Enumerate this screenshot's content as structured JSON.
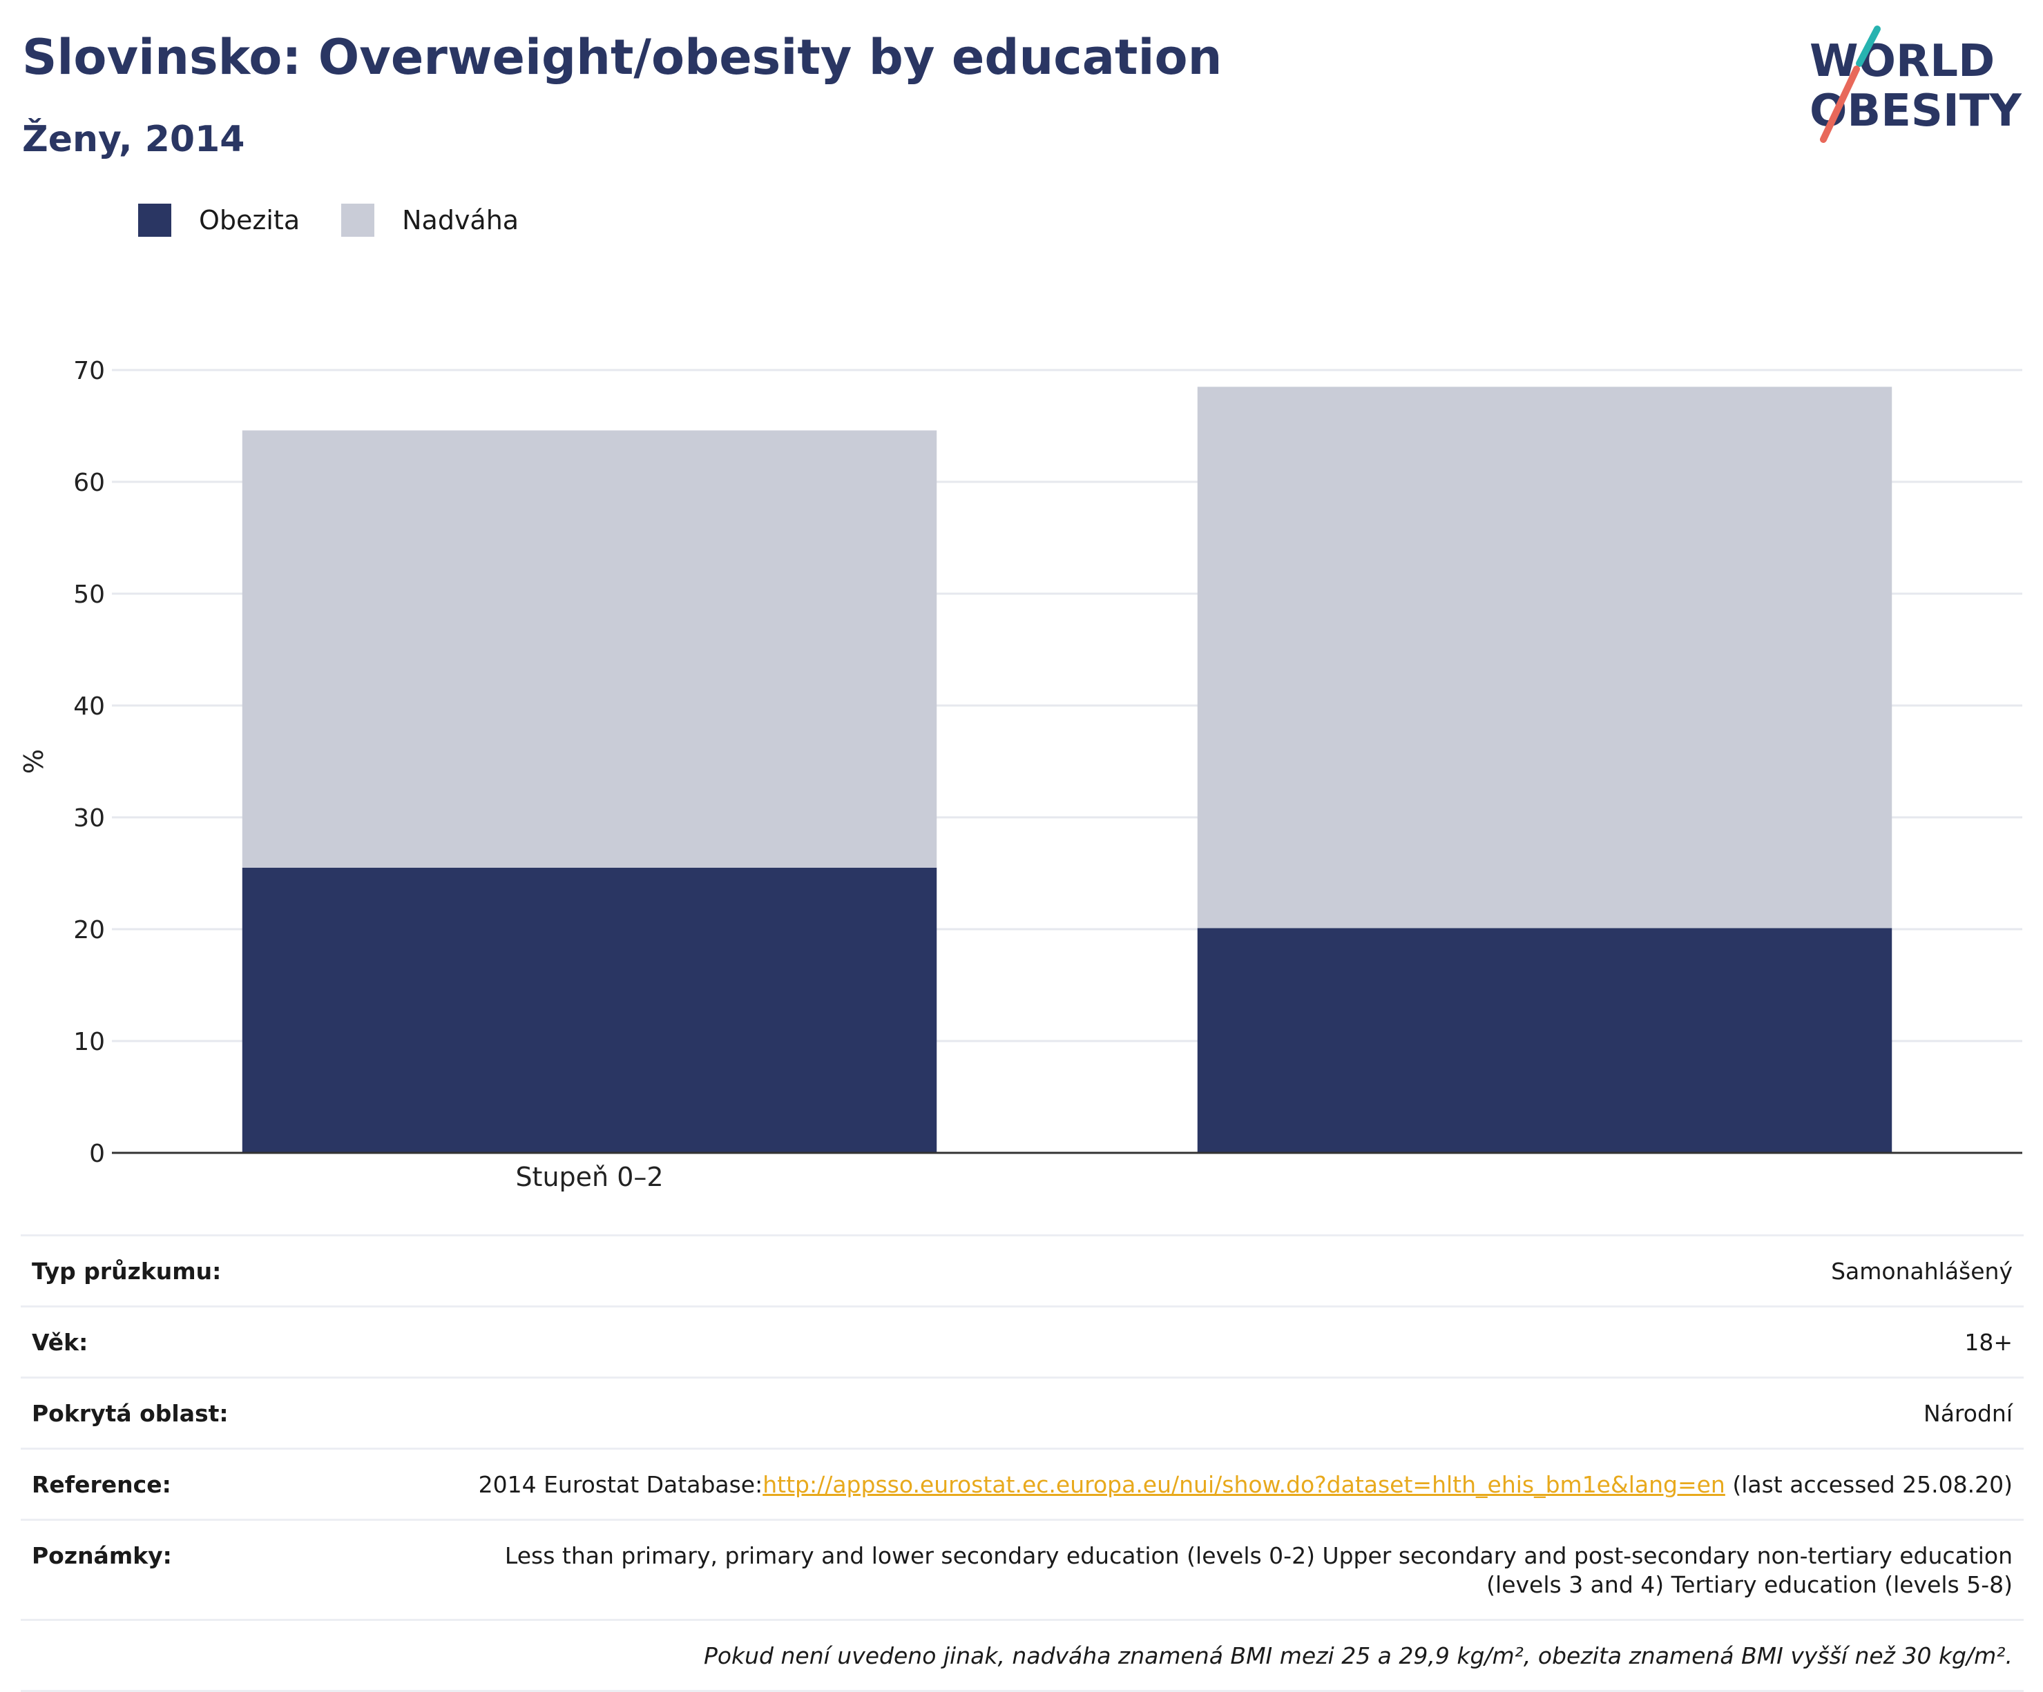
{
  "header": {
    "title": "Slovinsko: Overweight/obesity by education",
    "subtitle": "Ženy, 2014"
  },
  "logo": {
    "line1": "WORLD",
    "line2": "OBESITY",
    "colors": {
      "text": "#2a3663",
      "slash_teal": "#27b3b0",
      "slash_red": "#e8685a"
    }
  },
  "legend": [
    {
      "label": "Obezita",
      "color": "#2a3663"
    },
    {
      "label": "Nadváha",
      "color": "#c9ccd7"
    }
  ],
  "chart_data": {
    "type": "bar",
    "stacked": true,
    "categories": [
      "Stupeň 0–2",
      ""
    ],
    "series": [
      {
        "name": "Obezita",
        "values": [
          25.5,
          20.1
        ],
        "color": "#2a3663"
      },
      {
        "name": "Nadváha",
        "values": [
          39.1,
          48.4
        ],
        "color": "#c9ccd7"
      }
    ],
    "ylabel": "%",
    "ylim": [
      0,
      70
    ],
    "yticks": [
      0,
      10,
      20,
      30,
      40,
      50,
      60,
      70
    ],
    "grid": true
  },
  "info": {
    "survey_type": {
      "label": "Typ průzkumu:",
      "value": "Samonahlášený"
    },
    "age": {
      "label": "Věk:",
      "value": "18+"
    },
    "coverage": {
      "label": "Pokrytá oblast:",
      "value": "Národní"
    },
    "reference": {
      "label": "Reference:",
      "prefix": "2014 Eurostat Database:",
      "link": "http://appsso.eurostat.ec.europa.eu/nui/show.do?dataset=hlth_ehis_bm1e&lang=en",
      "suffix": " (last accessed 25.08.20)"
    },
    "notes": {
      "label": "Poznámky:",
      "value": "Less than primary, primary and lower secondary education (levels 0-2) Upper secondary and post-secondary non-tertiary education (levels 3 and 4) Tertiary education (levels 5-8)"
    },
    "footnote": "Pokud není uvedeno jinak, nadváha znamená BMI mezi 25 a 29,9 kg/m², obezita znamená BMI vyšší než 30 kg/m²."
  }
}
